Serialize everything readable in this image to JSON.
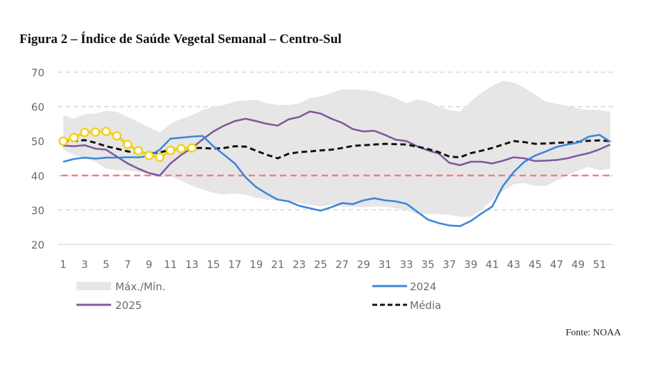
{
  "figure": {
    "title": "Figura 2 – Índice de Saúde Vegetal Semanal – Centro-Sul",
    "source": "Fonte: NOAA"
  },
  "colors": {
    "band": "#e6e6e6",
    "series_2024": "#3a86d8",
    "series_2025": "#7f5a9e",
    "media": "#111111",
    "threshold": "#f08080",
    "highlight": "#f2d21b",
    "grid": "#d0d0d0"
  },
  "chart_data": {
    "type": "line",
    "title": "Figura 2 – Índice de Saúde Vegetal Semanal – Centro-Sul",
    "xlabel": "",
    "ylabel": "",
    "ylim": [
      20,
      70
    ],
    "yticks": [
      20,
      30,
      40,
      50,
      60,
      70
    ],
    "xlim": [
      1,
      52
    ],
    "xticks": [
      1,
      3,
      5,
      7,
      9,
      11,
      13,
      15,
      17,
      19,
      21,
      23,
      25,
      27,
      29,
      31,
      33,
      35,
      37,
      39,
      41,
      43,
      45,
      47,
      49,
      51
    ],
    "grid": true,
    "legend_position": "bottom",
    "x": [
      1,
      2,
      3,
      4,
      5,
      6,
      7,
      8,
      9,
      10,
      11,
      12,
      13,
      14,
      15,
      16,
      17,
      18,
      19,
      20,
      21,
      22,
      23,
      24,
      25,
      26,
      27,
      28,
      29,
      30,
      31,
      32,
      33,
      34,
      35,
      36,
      37,
      38,
      39,
      40,
      41,
      42,
      43,
      44,
      45,
      46,
      47,
      48,
      49,
      50,
      51,
      52
    ],
    "band": {
      "name": "Máx./Mín.",
      "max": [
        57.5,
        56.5,
        57.8,
        58.0,
        58.8,
        58.5,
        57.0,
        55.5,
        54.0,
        52.5,
        55.0,
        56.5,
        57.5,
        59.0,
        60.0,
        60.5,
        61.5,
        61.8,
        62.0,
        61.0,
        60.5,
        60.5,
        61.0,
        62.5,
        63.0,
        64.0,
        65.0,
        65.0,
        64.8,
        64.5,
        63.5,
        62.5,
        61.0,
        62.0,
        61.5,
        60.0,
        59.0,
        58.5,
        61.5,
        64.0,
        66.0,
        67.5,
        67.0,
        65.5,
        63.5,
        61.5,
        60.8,
        60.2,
        59.5,
        59.0,
        59.0,
        58.5
      ],
      "min": [
        47.5,
        46.0,
        45.0,
        44.0,
        42.0,
        41.5,
        41.5,
        41.0,
        40.5,
        39.5,
        39.8,
        38.5,
        37.0,
        36.0,
        35.0,
        34.5,
        34.8,
        34.5,
        33.5,
        33.0,
        32.8,
        32.5,
        32.0,
        31.5,
        31.0,
        31.5,
        31.0,
        30.8,
        30.8,
        31.0,
        31.0,
        30.5,
        30.0,
        28.8,
        28.8,
        28.8,
        28.6,
        28.0,
        28.0,
        30.0,
        33.0,
        35.5,
        37.5,
        37.8,
        37.0,
        37.0,
        38.5,
        40.0,
        41.5,
        42.5,
        41.5,
        42.0
      ]
    },
    "series": [
      {
        "name": "2024",
        "values": [
          44.0,
          44.8,
          45.2,
          44.9,
          45.2,
          45.2,
          45.3,
          45.3,
          45.6,
          47.5,
          50.7,
          51.0,
          51.3,
          51.5,
          48.5,
          46.0,
          43.5,
          39.5,
          36.6,
          34.7,
          33.0,
          32.5,
          31.2,
          30.5,
          29.8,
          30.8,
          32.0,
          31.7,
          32.8,
          33.4,
          32.8,
          32.5,
          31.8,
          29.5,
          27.2,
          26.2,
          25.5,
          25.3,
          26.8,
          29.0,
          31.0,
          37.0,
          41.0,
          44.0,
          45.8,
          47.0,
          48.3,
          49.0,
          49.6,
          51.3,
          51.8,
          49.8
        ]
      },
      {
        "name": "2025",
        "values": [
          48.7,
          48.5,
          48.8,
          47.8,
          47.5,
          45.5,
          43.5,
          42.0,
          40.7,
          40.0,
          43.5,
          46.0,
          48.0,
          50.5,
          52.8,
          54.5,
          55.8,
          56.5,
          55.8,
          55.0,
          54.5,
          56.3,
          57.0,
          58.6,
          58.0,
          56.5,
          55.3,
          53.5,
          52.8,
          53.0,
          51.8,
          50.4,
          50.0,
          48.5,
          47.3,
          46.4,
          43.7,
          43.0,
          44.0,
          44.0,
          43.5,
          44.3,
          45.3,
          45.0,
          44.2,
          44.3,
          44.5,
          45.0,
          45.8,
          46.5,
          47.6,
          49.0
        ]
      },
      {
        "name": "Média",
        "values": [
          50.2,
          50.0,
          50.3,
          49.5,
          48.5,
          47.8,
          47.0,
          46.6,
          46.4,
          46.7,
          47.5,
          48.0,
          48.0,
          48.0,
          47.8,
          48.0,
          48.5,
          48.4,
          47.2,
          46.0,
          45.0,
          46.3,
          46.8,
          47.0,
          47.3,
          47.5,
          48.0,
          48.6,
          48.8,
          49.0,
          49.2,
          49.1,
          49.0,
          48.4,
          47.7,
          46.8,
          45.5,
          45.3,
          46.5,
          47.2,
          48.0,
          49.0,
          50.0,
          49.7,
          49.2,
          49.3,
          49.5,
          49.6,
          49.8,
          50.1,
          50.2,
          50.0
        ],
        "dashed": true
      }
    ],
    "highlight": {
      "description": "Semanas destacadas (marcadores amarelos)",
      "x": [
        1,
        2,
        3,
        4,
        5,
        6,
        7,
        8,
        9,
        10,
        11,
        12,
        13
      ],
      "values": [
        50.0,
        51.0,
        52.5,
        52.6,
        52.8,
        51.5,
        49.0,
        47.2,
        45.8,
        45.3,
        47.3,
        47.8,
        48.0
      ]
    },
    "threshold": {
      "value": 40,
      "style": "dashed"
    }
  },
  "legend": {
    "band_label": "Máx./Mín.",
    "s2024_label": "2024",
    "s2025_label": "2025",
    "media_label": "Média"
  }
}
